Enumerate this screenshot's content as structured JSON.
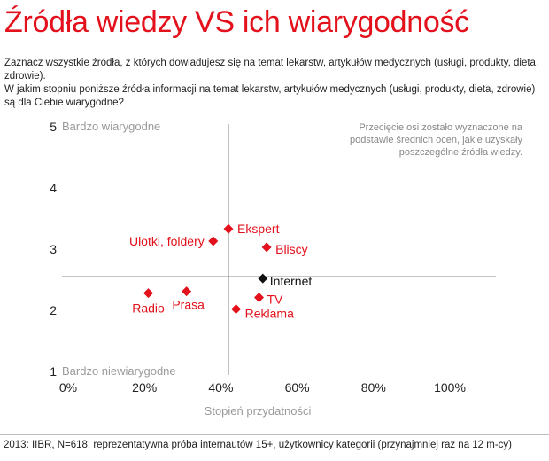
{
  "title": "Źródła wiedzy VS ich wiarygodność",
  "question": {
    "line1": "Zaznacz wszystkie źródła, z których dowiadujesz się na temat lekarstw, artykułów medycznych (usługi, produkty, dieta, zdrowie).",
    "line2": "W jakim stopniu poniższe źródła informacji na temat lekarstw, artykułów medycznych (usługi, produkty, dieta, zdrowie) są dla Ciebie wiarygodne?"
  },
  "note": "Przecięcie osi zostało wyznaczone na podstawie średnich ocen, jakie uzyskały poszczególne źródła wiedzy.",
  "footer": "2013: IIBR, N=618; reprezentatywna próba internautów 15+, użytkownicy kategorii (przynajmniej raz na 12 m-cy)",
  "chart_data": {
    "type": "scatter",
    "xlabel": "Stopień przydatności",
    "ylabel": "",
    "xlim": [
      0,
      100
    ],
    "ylim": [
      1,
      5
    ],
    "x_ticks": [
      "0%",
      "20%",
      "40%",
      "60%",
      "80%",
      "100%"
    ],
    "y_ticks": [
      "1",
      "2",
      "3",
      "4",
      "5"
    ],
    "y_top_label": "Bardzo wiarygodne",
    "y_bottom_label": "Bardzo niewiarygodne",
    "crossing": {
      "x": 42,
      "y": 2.55
    },
    "grid": false,
    "colors": {
      "default": "#e3111b",
      "highlight": "#111111",
      "axis": "#888888"
    },
    "points": [
      {
        "label": "Ekspert",
        "x": 42,
        "y": 3.33,
        "color": "#e3111b"
      },
      {
        "label": "Ulotki, foldery",
        "x": 38,
        "y": 3.13,
        "color": "#e3111b"
      },
      {
        "label": "Bliscy",
        "x": 52,
        "y": 3.03,
        "color": "#e3111b"
      },
      {
        "label": "Internet",
        "x": 51,
        "y": 2.52,
        "color": "#111111"
      },
      {
        "label": "Radio",
        "x": 21,
        "y": 2.28,
        "color": "#e3111b"
      },
      {
        "label": "Prasa",
        "x": 31,
        "y": 2.31,
        "color": "#e3111b"
      },
      {
        "label": "TV",
        "x": 50,
        "y": 2.21,
        "color": "#e3111b"
      },
      {
        "label": "Reklama",
        "x": 44,
        "y": 2.02,
        "color": "#e3111b"
      }
    ]
  }
}
